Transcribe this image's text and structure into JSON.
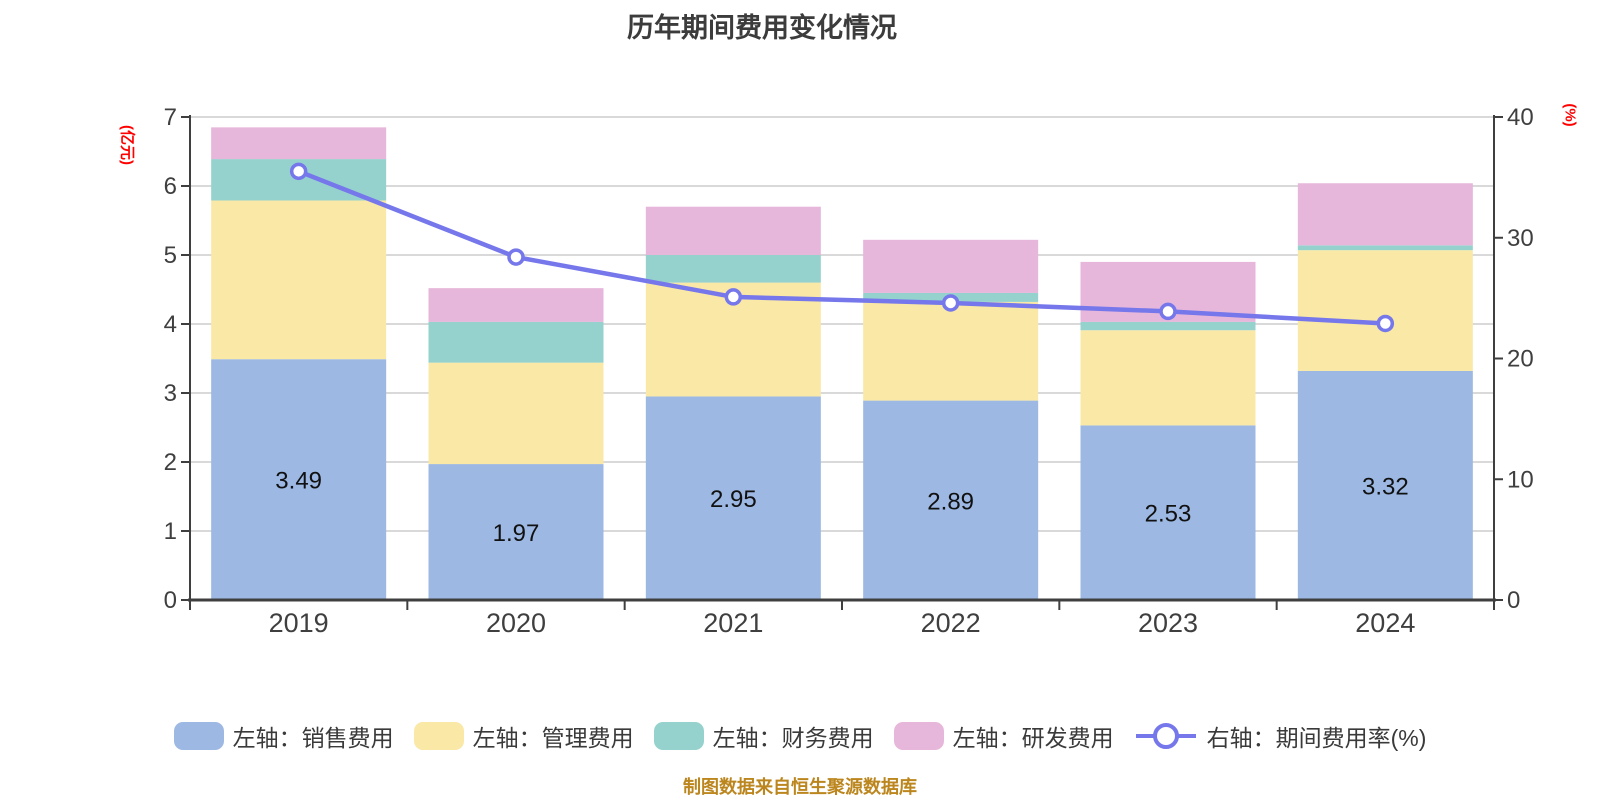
{
  "title": "历年期间费用变化情况",
  "source_note": "制图数据来自恒生聚源数据库",
  "left_axis_unit": "(亿元)",
  "right_axis_unit": "(%)",
  "colors": {
    "background": "#ffffff",
    "title_text": "#3c3c3c",
    "axis_line": "#3f3f3f",
    "tick_text": "#3f3f3f",
    "grid_line": "#d9d9d9",
    "axis_unit_text": "#ff0000",
    "data_label_text": "#111111",
    "legend_text": "#3a3a3a",
    "source_note_text": "#bc861e"
  },
  "chart_data": {
    "type": "bar",
    "subtype": "stacked-bar-with-line",
    "categories": [
      "2019",
      "2020",
      "2021",
      "2022",
      "2023",
      "2024"
    ],
    "series": [
      {
        "name": "左轴：销售费用",
        "type": "bar",
        "axis": "left",
        "color": "#9cb8e3",
        "values": [
          3.49,
          1.97,
          2.95,
          2.89,
          2.53,
          3.32
        ],
        "labels": [
          "3.49",
          "1.97",
          "2.95",
          "2.89",
          "2.53",
          "3.32"
        ]
      },
      {
        "name": "左轴：管理费用",
        "type": "bar",
        "axis": "left",
        "color": "#f9e8a6",
        "values": [
          2.3,
          1.47,
          1.65,
          1.43,
          1.38,
          1.75
        ]
      },
      {
        "name": "左轴：财务费用",
        "type": "bar",
        "axis": "left",
        "color": "#95d2cd",
        "values": [
          0.6,
          0.59,
          0.4,
          0.13,
          0.12,
          0.07
        ]
      },
      {
        "name": "左轴：研发费用",
        "type": "bar",
        "axis": "left",
        "color": "#e6b7da",
        "values": [
          0.46,
          0.49,
          0.7,
          0.77,
          0.87,
          0.9
        ]
      },
      {
        "name": "右轴：期间费用率(%)",
        "type": "line",
        "axis": "right",
        "color": "#7577eb",
        "marker": "circle",
        "values": [
          35.5,
          28.4,
          25.1,
          24.6,
          23.9,
          22.9
        ]
      }
    ],
    "left_axis": {
      "label": "(亿元)",
      "min": 0,
      "max": 7,
      "ticks": [
        0,
        1,
        2,
        3,
        4,
        5,
        6,
        7
      ]
    },
    "right_axis": {
      "label": "(%)",
      "min": 0,
      "max": 40,
      "ticks": [
        0,
        10,
        20,
        30,
        40
      ]
    },
    "grid": true,
    "legend_position": "bottom",
    "bar_totals": [
      6.85,
      4.52,
      5.7,
      5.22,
      4.9,
      6.04
    ]
  }
}
